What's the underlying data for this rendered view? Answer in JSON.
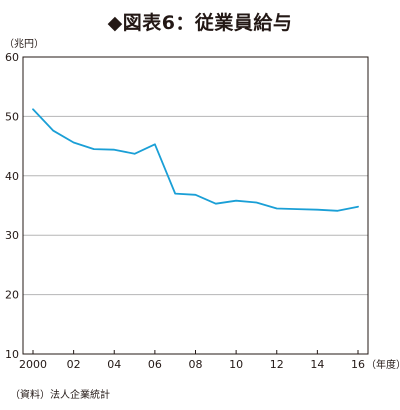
{
  "title": "◆図表6：従業員給与",
  "source_note": "（資料）法人企業統計",
  "chart_data": {
    "type": "line",
    "title": "◆図表6：従業員給与",
    "y_unit": "（兆円）",
    "x_unit": "（年度）",
    "ylim": [
      10,
      60
    ],
    "xlim": [
      2000,
      2016
    ],
    "y_ticks": [
      10,
      20,
      30,
      40,
      50,
      60
    ],
    "x_tick_labels": [
      {
        "x": 2000,
        "label": "2000"
      },
      {
        "x": 2002,
        "label": "02"
      },
      {
        "x": 2004,
        "label": "04"
      },
      {
        "x": 2006,
        "label": "06"
      },
      {
        "x": 2008,
        "label": "08"
      },
      {
        "x": 2010,
        "label": "10"
      },
      {
        "x": 2012,
        "label": "12"
      },
      {
        "x": 2014,
        "label": "14"
      },
      {
        "x": 2016,
        "label": "16"
      }
    ],
    "grid": true,
    "line_color": "#1a9fd6",
    "series": [
      {
        "x": [
          2000,
          2001,
          2002,
          2003,
          2004,
          2005,
          2006,
          2007,
          2008,
          2009,
          2010,
          2011,
          2012,
          2013,
          2014,
          2015,
          2016
        ],
        "values": [
          51.2,
          47.6,
          45.6,
          44.5,
          44.4,
          43.7,
          45.3,
          37.0,
          36.8,
          35.3,
          35.8,
          35.5,
          34.5,
          34.4,
          34.3,
          34.1,
          34.8
        ]
      }
    ]
  }
}
